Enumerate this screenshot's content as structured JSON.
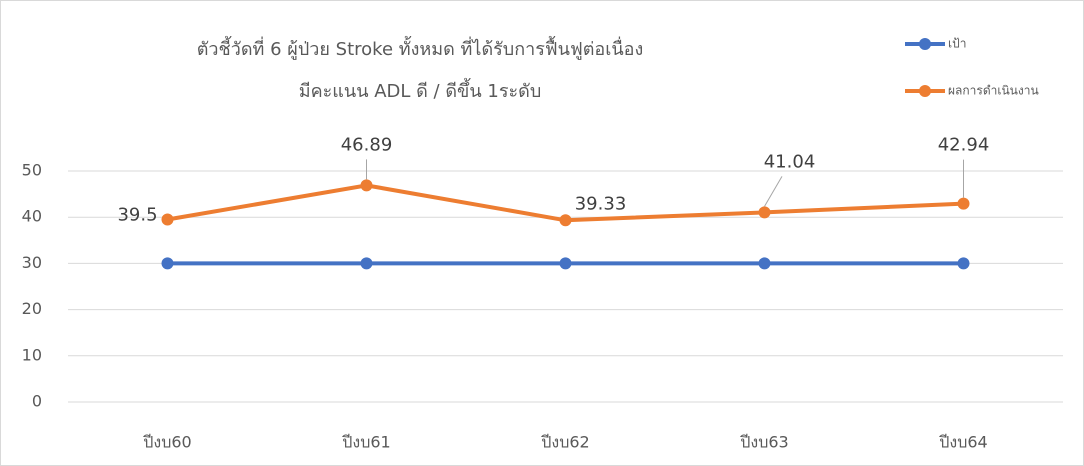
{
  "chart_data": {
    "type": "line",
    "title": [
      "ตัวชี้วัดที่ 6 ผู้ป่วย Stroke ทั้งหมด ที่ได้รับการฟื้นฟูต่อเนื่อง",
      "มีคะแนน ADL ดี / ดีขึ้น 1ระดับ"
    ],
    "categories": [
      "ปีงบ60",
      "ปีงบ61",
      "ปีงบ62",
      "ปีงบ63",
      "ปีงบ64"
    ],
    "series": [
      {
        "name": "เป้า",
        "color": "#4472c4",
        "values": [
          30,
          30,
          30,
          30,
          30
        ]
      },
      {
        "name": "ผลการดำเนินงาน",
        "color": "#ed7d31",
        "values": [
          39.5,
          46.89,
          39.33,
          41.04,
          42.94
        ],
        "data_labels": true
      }
    ],
    "ylim": [
      0,
      50
    ],
    "yticks": [
      0,
      10,
      20,
      30,
      40,
      50
    ],
    "grid": true,
    "legend": "top-right"
  }
}
